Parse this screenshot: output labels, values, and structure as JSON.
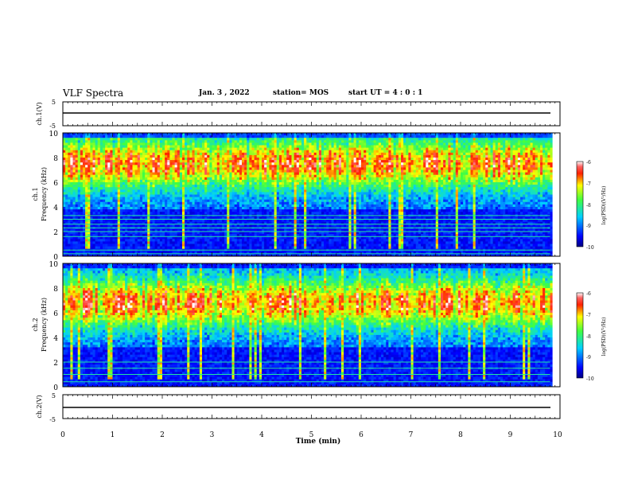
{
  "header": {
    "title": "VLF Spectra",
    "date": "Jan. 3 , 2022",
    "station": "station= MOS",
    "start": "start UT =  4 : 0  : 1"
  },
  "chart_data": [
    {
      "type": "line",
      "ylabel": "ch.1(V)",
      "ylim": [
        -5,
        5
      ],
      "yticks": [
        "5",
        "-5"
      ],
      "x": [
        0,
        9.8
      ],
      "values": [
        0,
        0
      ]
    },
    {
      "type": "heatmap",
      "ylabel": "ch.1",
      "ylabel2": "Frequency (kHz)",
      "ylim": [
        0,
        10
      ],
      "yticks": [
        "10",
        "8",
        "6",
        "4",
        "2",
        "0"
      ],
      "xlim": [
        0,
        9.8
      ],
      "colorbar": {
        "label": "log(PSD)(V²/Hz)",
        "ticks": [
          "-6",
          "-7",
          "-8",
          "-9",
          "-10"
        ],
        "range": [
          -10,
          -6
        ]
      },
      "band_center_kHz": 7.5,
      "line_freqs_kHz": [
        0.2,
        0.5,
        1.6,
        2.0,
        2.3,
        2.6,
        3.0,
        3.3
      ]
    },
    {
      "type": "heatmap",
      "ylabel": "ch.2",
      "ylabel2": "Frequency (kHz)",
      "ylim": [
        0,
        10
      ],
      "yticks": [
        "10",
        "8",
        "6",
        "4",
        "2",
        "0"
      ],
      "xlim": [
        0,
        9.8
      ],
      "colorbar": {
        "label": "log(PSD)(V²/Hz)",
        "ticks": [
          "-6",
          "-7",
          "-8",
          "-9",
          "-10"
        ],
        "range": [
          -10,
          -6
        ]
      },
      "band_center_kHz": 6.8,
      "line_freqs_kHz": [
        0.4,
        1.0,
        1.5,
        2.0
      ]
    },
    {
      "type": "line",
      "ylabel": "ch.2(V)",
      "ylim": [
        -5,
        5
      ],
      "yticks": [
        "5",
        "-5"
      ],
      "x": [
        0,
        9.8
      ],
      "values": [
        0,
        0
      ]
    }
  ],
  "xaxis": {
    "label": "Time (min)",
    "ticks": [
      "0",
      "1",
      "2",
      "3",
      "4",
      "5",
      "6",
      "7",
      "8",
      "9",
      "10"
    ],
    "range": [
      0,
      10
    ]
  }
}
